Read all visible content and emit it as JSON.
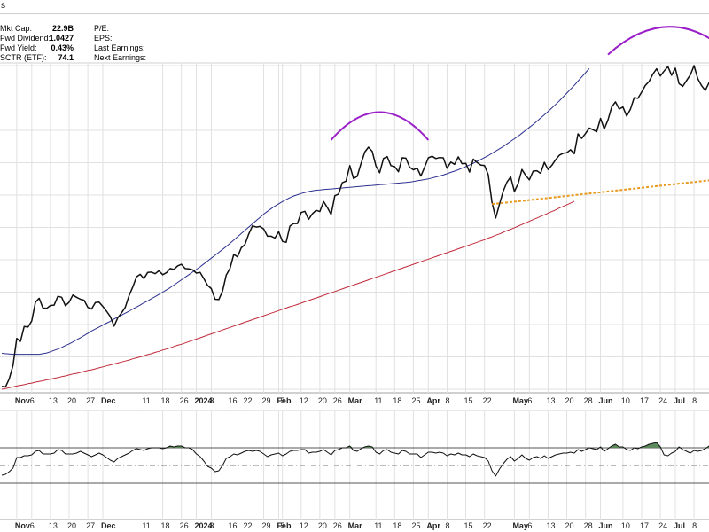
{
  "header": {
    "title": "s"
  },
  "stats_left": [
    {
      "label": "Mkt Cap:",
      "value": "22.9B"
    },
    {
      "label": "Fwd Dividend:",
      "value": "1.0427"
    },
    {
      "label": "Fwd Yield:",
      "value": "0.43%"
    },
    {
      "label": "SCTR (ETF):",
      "value": "74.1"
    }
  ],
  "stats_right": [
    {
      "label": "P/E:"
    },
    {
      "label": "EPS:"
    },
    {
      "label": "Last Earnings:"
    },
    {
      "label": "Next Earnings:"
    }
  ],
  "colors": {
    "price": "#111111",
    "ma_short": "#2b2f8f",
    "ma_long": "#c0293a",
    "arc": "#9b1fc9",
    "trendline": "#e89a1c",
    "osc_fill": "#5d8a5d",
    "grid": "#e1e1e1"
  },
  "x_axis_ticks": [
    {
      "label": "Nov",
      "bold": true,
      "i": 4
    },
    {
      "label": "6",
      "i": 8
    },
    {
      "label": "13",
      "i": 13
    },
    {
      "label": "20",
      "i": 18
    },
    {
      "label": "27",
      "i": 23
    },
    {
      "label": "Dec",
      "bold": true,
      "i": 27
    },
    {
      "label": "11",
      "i": 38
    },
    {
      "label": "18",
      "i": 43
    },
    {
      "label": "26",
      "i": 48
    },
    {
      "label": "2024",
      "bold": true,
      "i": 52
    },
    {
      "label": "8",
      "i": 56
    },
    {
      "label": "16",
      "i": 61
    },
    {
      "label": "22",
      "i": 65
    },
    {
      "label": "29",
      "i": 70
    },
    {
      "label": "Feb",
      "bold": true,
      "i": 74
    },
    {
      "label": "5",
      "i": 75
    },
    {
      "label": "12",
      "i": 80
    },
    {
      "label": "20",
      "i": 85
    },
    {
      "label": "26",
      "i": 89
    },
    {
      "label": "Mar",
      "bold": true,
      "i": 93
    },
    {
      "label": "11",
      "i": 100
    },
    {
      "label": "18",
      "i": 105
    },
    {
      "label": "25",
      "i": 110
    },
    {
      "label": "Apr",
      "bold": true,
      "i": 114
    },
    {
      "label": "8",
      "i": 119
    },
    {
      "label": "15",
      "i": 124
    },
    {
      "label": "22",
      "i": 129
    },
    {
      "label": "May",
      "bold": true,
      "i": 137
    },
    {
      "label": "6",
      "i": 141
    },
    {
      "label": "13",
      "i": 146
    },
    {
      "label": "20",
      "i": 151
    },
    {
      "label": "28",
      "i": 156
    },
    {
      "label": "Jun",
      "bold": true,
      "i": 160
    },
    {
      "label": "10",
      "i": 166
    },
    {
      "label": "17",
      "i": 171
    },
    {
      "label": "24",
      "i": 176
    },
    {
      "label": "Jul",
      "bold": true,
      "i": 180
    },
    {
      "label": "8",
      "i": 185
    }
  ],
  "chart_data": [
    {
      "type": "line",
      "panel": "price",
      "n": 190,
      "ylim": [
        0,
        100
      ],
      "grid": true,
      "series": [
        {
          "key": "price",
          "values": [
            0.9,
            0.7,
            3.2,
            7.4,
            15.7,
            14.8,
            19.4,
            19.2,
            21.1,
            26.9,
            28.1,
            25.1,
            25.0,
            25.9,
            26.0,
            28.7,
            28.4,
            25.8,
            26.9,
            29.1,
            28.4,
            27.8,
            27.5,
            25.3,
            24.8,
            26.8,
            26.9,
            25.6,
            24.1,
            22.5,
            19.5,
            22.1,
            23.6,
            25.3,
            28.9,
            31.6,
            34.7,
            35.5,
            34.2,
            36.1,
            36.2,
            35.7,
            36.6,
            35.4,
            36.0,
            37.3,
            37.0,
            38.1,
            38.6,
            37.3,
            37.2,
            36.9,
            35.9,
            36.1,
            34.2,
            32.1,
            31.1,
            27.8,
            27.7,
            30.3,
            35.3,
            37.4,
            41.7,
            40.9,
            43.7,
            44.7,
            48.0,
            50.5,
            50.1,
            50.3,
            49.5,
            47.3,
            47.3,
            46.7,
            48.7,
            45.7,
            45.4,
            50.4,
            51.2,
            51.2,
            54.6,
            55.0,
            52.5,
            54.2,
            55.3,
            54.9,
            58.0,
            56.2,
            54.0,
            59.8,
            60.3,
            63.8,
            64.3,
            69.1,
            65.1,
            65.8,
            69.7,
            73.3,
            74.8,
            73.5,
            69.0,
            66.9,
            71.3,
            71.9,
            69.1,
            68.8,
            67.2,
            71.5,
            71.4,
            68.6,
            67.8,
            68.3,
            65.9,
            68.6,
            71.5,
            72.0,
            71.3,
            71.6,
            71.5,
            68.3,
            70.2,
            69.5,
            71.8,
            69.7,
            69.8,
            67.1,
            71.1,
            70.1,
            69.3,
            69.1,
            66.3,
            57.8,
            52.9,
            57.2,
            61.2,
            64.0,
            65.6,
            61.1,
            63.6,
            67.9,
            66.1,
            64.7,
            67.4,
            67.5,
            66.7,
            70.1,
            67.9,
            69.2,
            70.9,
            72.3,
            72.9,
            73.1,
            74.0,
            72.8,
            78.9,
            77.5,
            79.0,
            80.7,
            80.2,
            79.6,
            83.7,
            80.4,
            83.2,
            87.2,
            88.8,
            86.6,
            87.2,
            84.4,
            86.5,
            90.1,
            89.9,
            91.8,
            93.9,
            95.1,
            97.4,
            99.0,
            96.8,
            98.3,
            99.7,
            97.0,
            99.2,
            94.4,
            93.6,
            95.4,
            97.1,
            100.0,
            96.0,
            93.8,
            92.3,
            94.7,
            93.5,
            93.0,
            95.1,
            97.8,
            96.8,
            98.7,
            99.7,
            98.7
          ]
        },
        {
          "key": "ma_short",
          "values": [
            11.1,
            11.0,
            10.9,
            10.8,
            10.8,
            10.8,
            10.8,
            10.8,
            10.8,
            10.8,
            10.8,
            11.0,
            11.2,
            11.6,
            12.0,
            12.4,
            12.9,
            13.5,
            14.0,
            14.6,
            15.3,
            15.9,
            16.6,
            17.3,
            18.0,
            18.6,
            19.2,
            19.8,
            20.4,
            21.0,
            21.7,
            22.3,
            22.9,
            23.5,
            24.1,
            24.8,
            25.4,
            26.0,
            26.7,
            27.3,
            28.0,
            28.6,
            29.3,
            30.0,
            30.7,
            31.4,
            32.2,
            33.0,
            33.8,
            34.6,
            35.4,
            36.2,
            37.0,
            37.8,
            38.7,
            39.6,
            40.5,
            41.4,
            42.3,
            43.2,
            44.1,
            45.1,
            46.1,
            47.1,
            48.1,
            49.1,
            50.1,
            51.1,
            52.1,
            53.1,
            54.1,
            55.0,
            55.8,
            56.6,
            57.3,
            58.0,
            58.6,
            59.2,
            59.7,
            60.1,
            60.5,
            60.8,
            61.1,
            61.3,
            61.5,
            61.6,
            61.7,
            61.8,
            61.9,
            62.0,
            62.1,
            62.2,
            62.3,
            62.4,
            62.5,
            62.6,
            62.7,
            62.8,
            62.9,
            63.0,
            63.1,
            63.2,
            63.3,
            63.4,
            63.5,
            63.6,
            63.7,
            63.8,
            63.9,
            64.0,
            64.2,
            64.4,
            64.6,
            64.8,
            65.0,
            65.3,
            65.6,
            65.9,
            66.2,
            66.6,
            67.0,
            67.4,
            67.8,
            68.3,
            68.8,
            69.3,
            69.8,
            70.4,
            71.0,
            71.6,
            72.2,
            72.9,
            73.6,
            74.3,
            75.0,
            75.8,
            76.6,
            77.4,
            78.2,
            79.1,
            80.0,
            80.9,
            81.8,
            82.8,
            83.8,
            84.8,
            85.8,
            86.9,
            88.0,
            89.1,
            90.3,
            91.5,
            92.7,
            93.9,
            95.2,
            96.5,
            97.8,
            99.1
          ]
        },
        {
          "key": "ma_long",
          "values": [
            0.0,
            0.2,
            0.5,
            0.7,
            1.0,
            1.2,
            1.4,
            1.7,
            1.9,
            2.2,
            2.4,
            2.6,
            2.9,
            3.1,
            3.4,
            3.6,
            3.9,
            4.1,
            4.4,
            4.7,
            4.9,
            5.2,
            5.5,
            5.8,
            6.0,
            6.3,
            6.6,
            6.9,
            7.2,
            7.5,
            7.8,
            8.1,
            8.4,
            8.7,
            9.0,
            9.4,
            9.7,
            10.0,
            10.3,
            10.7,
            11.0,
            11.4,
            11.7,
            12.1,
            12.4,
            12.8,
            13.2,
            13.6,
            13.9,
            14.3,
            14.7,
            15.1,
            15.5,
            15.9,
            16.3,
            16.7,
            17.1,
            17.5,
            17.9,
            18.3,
            18.7,
            19.1,
            19.5,
            19.9,
            20.3,
            20.7,
            21.1,
            21.5,
            21.9,
            22.3,
            22.7,
            23.1,
            23.5,
            23.9,
            24.3,
            24.7,
            25.1,
            25.5,
            25.8,
            26.2,
            26.6,
            27.0,
            27.4,
            27.8,
            28.2,
            28.6,
            29.0,
            29.4,
            29.8,
            30.2,
            30.6,
            31.0,
            31.4,
            31.8,
            32.2,
            32.6,
            33.0,
            33.4,
            33.8,
            34.2,
            34.6,
            35.0,
            35.4,
            35.8,
            36.2,
            36.6,
            37.0,
            37.4,
            37.8,
            38.2,
            38.6,
            39.0,
            39.4,
            39.8,
            40.2,
            40.6,
            41.0,
            41.4,
            41.8,
            42.2,
            42.6,
            43.0,
            43.4,
            43.8,
            44.2,
            44.6,
            45.0,
            45.4,
            45.8,
            46.2,
            46.7,
            47.1,
            47.6,
            48.0,
            48.5,
            49.0,
            49.4,
            49.9,
            50.4,
            50.9,
            51.4,
            51.9,
            52.4,
            52.9,
            53.4,
            53.9,
            54.4,
            54.9,
            55.4,
            56.0,
            56.5,
            57.0,
            57.5,
            58.1
          ]
        }
      ],
      "annotations": [
        {
          "type": "arc",
          "i0": 88,
          "i1": 114,
          "base": 77.0,
          "peak": 85.6
        },
        {
          "type": "arc",
          "i0": 162,
          "i1": 195,
          "base": 103.4,
          "peak": 112.0
        },
        {
          "type": "dashed_trendline",
          "i0": 131,
          "i1": 195,
          "v0": 57.2,
          "v1": 65.3
        }
      ]
    },
    {
      "type": "area",
      "panel": "oscillator",
      "n": 190,
      "ylim": [
        0,
        100
      ],
      "levels": {
        "upper": 70,
        "mid": 50,
        "lower": 30
      },
      "grid": true,
      "series": [
        {
          "key": "osc",
          "values": [
            39,
            40,
            43,
            47,
            59,
            59,
            61,
            61,
            62,
            66,
            67,
            63,
            63,
            63,
            64,
            68,
            67,
            63,
            63,
            63,
            64,
            66,
            64,
            62,
            60,
            62,
            64,
            62,
            59,
            56,
            54,
            58,
            60,
            62,
            64,
            67,
            69,
            68,
            67,
            69,
            70,
            70,
            70,
            69,
            70,
            72,
            71,
            72,
            72,
            70,
            70,
            68,
            63,
            60,
            55,
            49,
            47,
            43,
            44,
            50,
            58,
            60,
            63,
            62,
            64,
            66,
            67,
            66,
            67,
            66,
            63,
            60,
            62,
            63,
            64,
            61,
            63,
            66,
            67,
            67,
            68,
            68,
            64,
            65,
            65,
            66,
            68,
            65,
            62,
            67,
            68,
            70,
            70,
            72,
            67,
            66,
            69,
            71,
            72,
            71,
            65,
            63,
            67,
            68,
            65,
            64,
            63,
            67,
            66,
            63,
            63,
            63,
            59,
            62,
            65,
            65,
            64,
            65,
            64,
            61,
            63,
            62,
            64,
            62,
            62,
            60,
            63,
            61,
            60,
            59,
            55,
            44,
            38,
            46,
            52,
            57,
            60,
            55,
            58,
            62,
            58,
            56,
            59,
            60,
            58,
            61,
            58,
            60,
            62,
            63,
            64,
            64,
            65,
            64,
            68,
            66,
            68,
            70,
            69,
            68,
            71,
            66,
            69,
            72,
            74,
            71,
            71,
            68,
            67,
            70,
            69,
            71,
            72,
            74,
            75,
            76,
            71,
            62,
            61,
            64,
            66,
            71,
            68,
            66,
            64,
            67,
            66,
            67,
            69,
            72,
            70,
            72,
            74,
            72
          ]
        }
      ]
    }
  ]
}
